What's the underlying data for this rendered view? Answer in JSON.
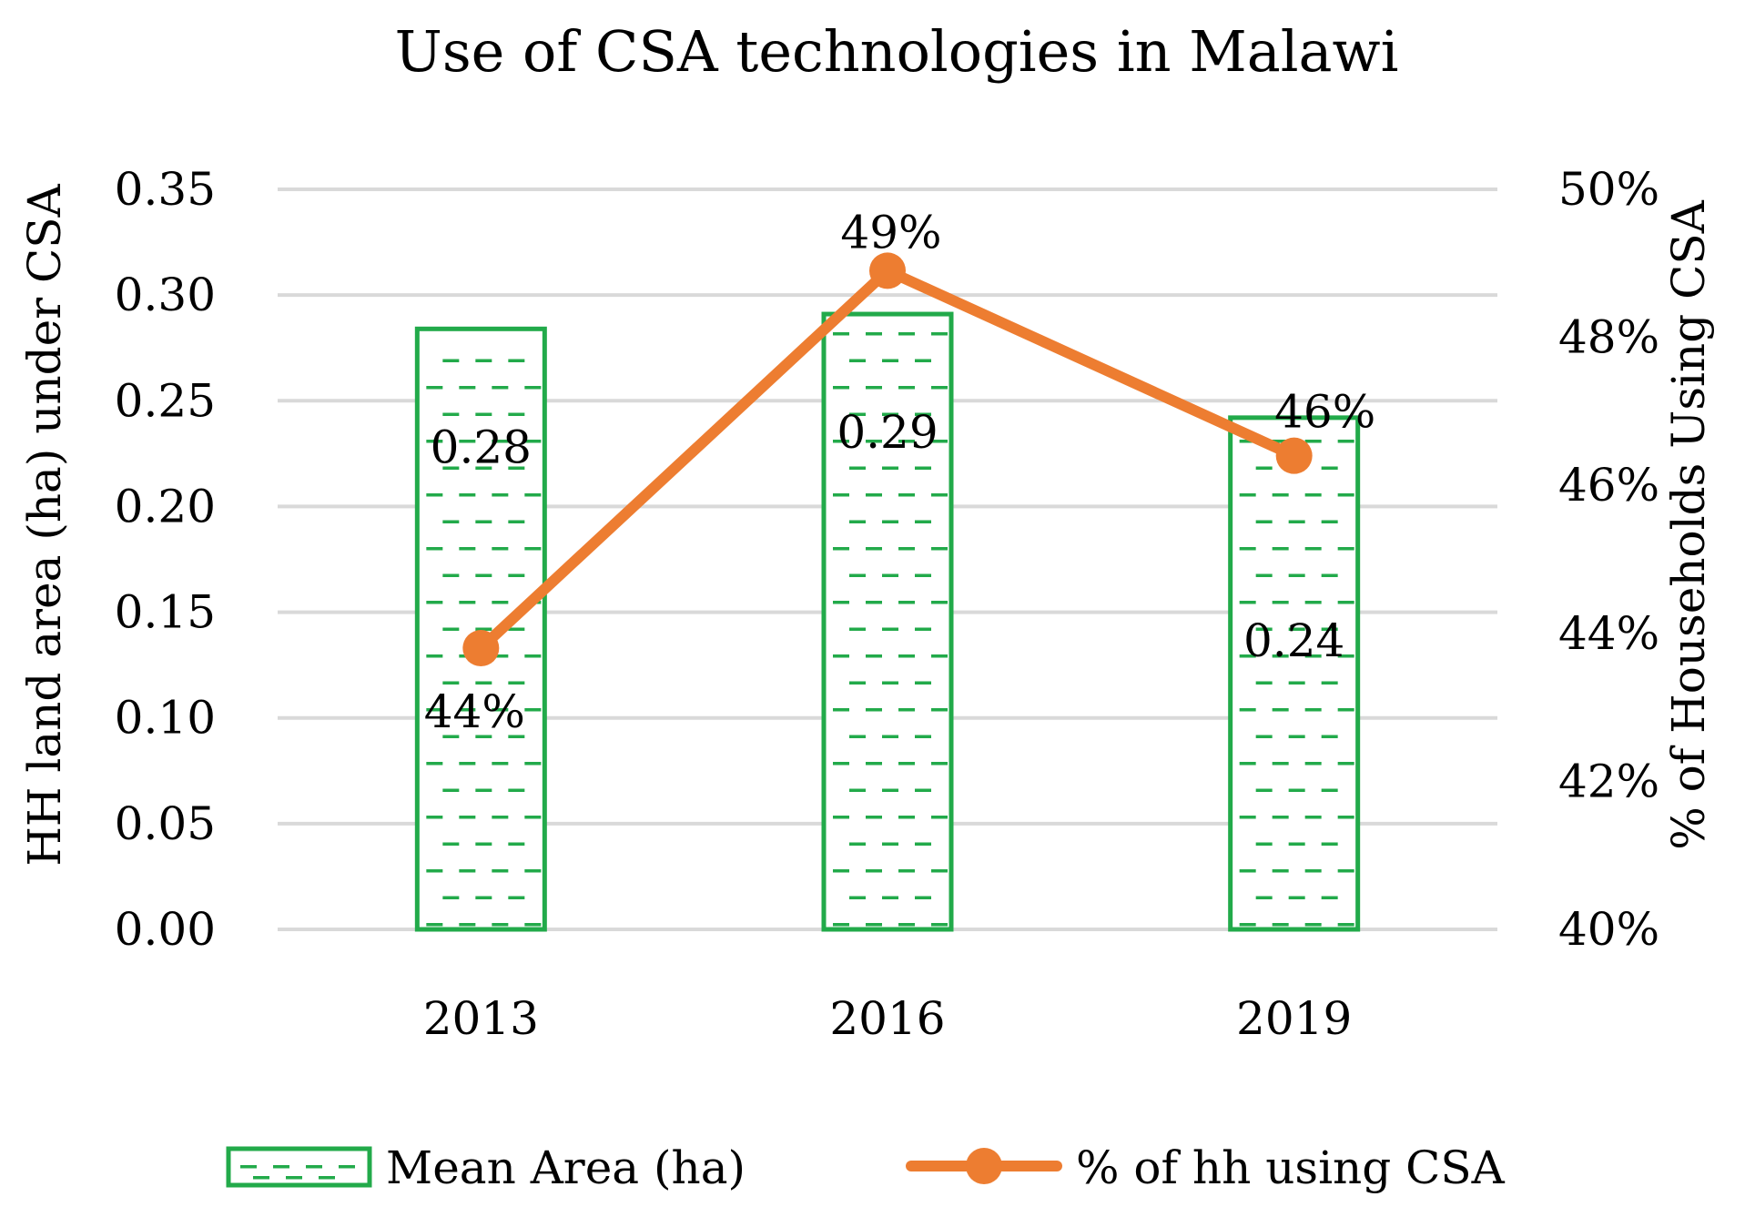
{
  "chart_data": {
    "type": "bar+line",
    "title": "Use of CSA technologies in Malawi",
    "categories": [
      "2013",
      "2016",
      "2019"
    ],
    "y_left": {
      "label": "HH land area (ha) under CSA",
      "range": [
        0,
        0.35
      ],
      "ticks": [
        "0.00",
        "0.05",
        "0.10",
        "0.15",
        "0.20",
        "0.25",
        "0.30",
        "0.35"
      ],
      "tick_values": [
        0,
        0.05,
        0.1,
        0.15,
        0.2,
        0.25,
        0.3,
        0.35
      ]
    },
    "y_right": {
      "label": "% of Households Using CSA",
      "range": [
        40,
        50
      ],
      "ticks": [
        "40%",
        "42%",
        "44%",
        "46%",
        "48%",
        "50%"
      ],
      "tick_values": [
        40,
        42,
        44,
        46,
        48,
        50
      ]
    },
    "series": [
      {
        "name": "Mean Area (ha)",
        "kind": "bar",
        "axis": "left",
        "values": [
          0.284,
          0.291,
          0.242
        ],
        "data_labels": [
          "0.28",
          "0.29",
          "0.24"
        ],
        "color": "#22aa4a"
      },
      {
        "name": "% of hh using CSA",
        "kind": "line",
        "axis": "right",
        "values": [
          43.8,
          48.9,
          46.4
        ],
        "data_labels": [
          "44%",
          "49%",
          "46%"
        ],
        "color": "#ed7d31"
      }
    ],
    "grid": true,
    "legend": "bottom"
  }
}
